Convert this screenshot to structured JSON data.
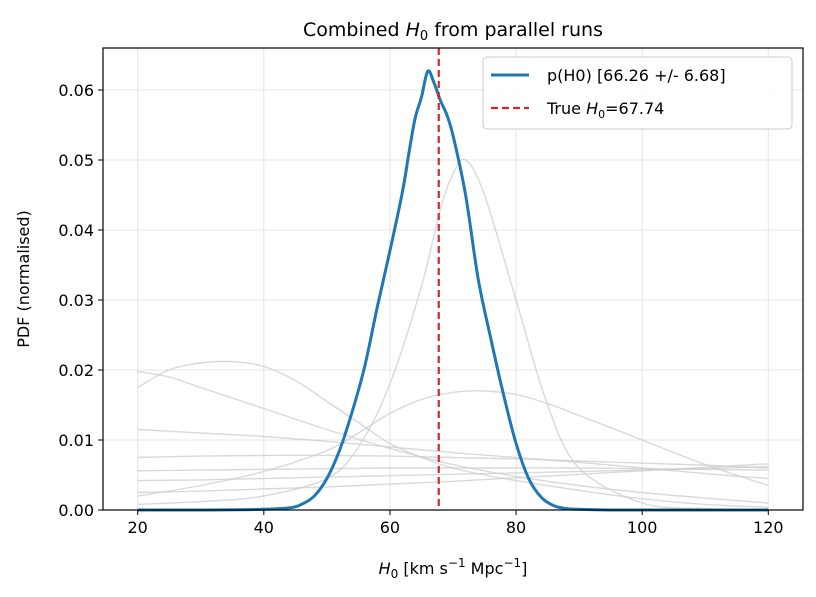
{
  "chart_data": {
    "type": "line",
    "title": "Combined H0 from parallel runs",
    "xlabel": "H0 [km s−1 Mpc−1]",
    "ylabel": "PDF (normalised)",
    "xlim": [
      14.5,
      125.5
    ],
    "ylim": [
      0,
      0.066
    ],
    "xticks": [
      20,
      40,
      60,
      80,
      100,
      120
    ],
    "yticks": [
      0.0,
      0.01,
      0.02,
      0.03,
      0.04,
      0.05,
      0.06
    ],
    "ytick_labels": [
      "0.00",
      "0.01",
      "0.02",
      "0.03",
      "0.04",
      "0.05",
      "0.06"
    ],
    "grid": true,
    "legend_position": "top-right",
    "colors": {
      "combined": "#1f77b4",
      "truth": "#d62728",
      "runs": "#cccccc"
    },
    "combined": {
      "name": "p(H0) [66.26 +/- 6.68]",
      "x": [
        20,
        30,
        40,
        44,
        46,
        48,
        50,
        52,
        54,
        56,
        58,
        60,
        62,
        63,
        64,
        65,
        66,
        67,
        68,
        69,
        70,
        72,
        74,
        76,
        78,
        80,
        82,
        84,
        86,
        88,
        90,
        95,
        100,
        110,
        120
      ],
      "y": [
        0,
        0,
        0.0001,
        0.0003,
        0.0008,
        0.002,
        0.0045,
        0.0085,
        0.014,
        0.0205,
        0.029,
        0.037,
        0.0455,
        0.051,
        0.056,
        0.059,
        0.0627,
        0.061,
        0.0585,
        0.0565,
        0.0535,
        0.045,
        0.033,
        0.0245,
        0.0165,
        0.0095,
        0.0045,
        0.0018,
        0.0006,
        0.0002,
        0.0001,
        0,
        0,
        0,
        0
      ]
    },
    "truth": {
      "name": "True H0=67.74",
      "x": 67.74
    },
    "runs": [
      {
        "x": [
          20,
          25,
          30,
          35,
          40,
          45,
          50,
          55,
          60,
          65,
          70,
          75,
          80,
          90,
          100,
          110,
          120
        ],
        "y": [
          0.0175,
          0.02,
          0.021,
          0.0212,
          0.0205,
          0.0185,
          0.0155,
          0.0125,
          0.0095,
          0.0075,
          0.006,
          0.005,
          0.0042,
          0.0028,
          0.0016,
          0.0008,
          0.0004
        ]
      },
      {
        "x": [
          20,
          25,
          30,
          40,
          50,
          60,
          70,
          80,
          90,
          100,
          110,
          120
        ],
        "y": [
          0.0198,
          0.019,
          0.0175,
          0.0145,
          0.0115,
          0.0088,
          0.0065,
          0.0048,
          0.0035,
          0.0025,
          0.0017,
          0.001
        ]
      },
      {
        "x": [
          20,
          30,
          40,
          50,
          60,
          70,
          80,
          90,
          100,
          110,
          120
        ],
        "y": [
          0.0115,
          0.011,
          0.0105,
          0.0098,
          0.009,
          0.0082,
          0.0075,
          0.0068,
          0.006,
          0.0052,
          0.0045
        ]
      },
      {
        "x": [
          20,
          30,
          40,
          50,
          60,
          70,
          80,
          90,
          100,
          110,
          120
        ],
        "y": [
          0.0075,
          0.0077,
          0.0078,
          0.0078,
          0.0077,
          0.0075,
          0.0073,
          0.007,
          0.0067,
          0.0064,
          0.006
        ]
      },
      {
        "x": [
          20,
          30,
          40,
          50,
          60,
          70,
          80,
          90,
          100,
          110,
          120
        ],
        "y": [
          0.0056,
          0.0057,
          0.0058,
          0.0059,
          0.006,
          0.006,
          0.006,
          0.006,
          0.0059,
          0.0058,
          0.0057
        ]
      },
      {
        "x": [
          20,
          30,
          40,
          50,
          60,
          70,
          80,
          90,
          100,
          110,
          120
        ],
        "y": [
          0.0042,
          0.0043,
          0.0045,
          0.0047,
          0.0049,
          0.0051,
          0.0053,
          0.0055,
          0.0057,
          0.0059,
          0.0062
        ]
      },
      {
        "x": [
          20,
          30,
          40,
          50,
          60,
          70,
          80,
          90,
          100,
          110,
          120
        ],
        "y": [
          0.0025,
          0.0027,
          0.003,
          0.0033,
          0.0037,
          0.0041,
          0.0046,
          0.0051,
          0.0056,
          0.0061,
          0.0066
        ]
      },
      {
        "x": [
          20,
          30,
          40,
          50,
          55,
          60,
          65,
          70,
          75,
          80,
          85,
          90,
          100,
          110,
          120
        ],
        "y": [
          0.002,
          0.0035,
          0.0055,
          0.0085,
          0.011,
          0.0138,
          0.0158,
          0.0168,
          0.017,
          0.0165,
          0.0152,
          0.0135,
          0.01,
          0.0065,
          0.0035
        ]
      },
      {
        "x": [
          20,
          30,
          40,
          50,
          55,
          60,
          65,
          68,
          70,
          72,
          75,
          80,
          85,
          90,
          100,
          110,
          120
        ],
        "y": [
          0.0008,
          0.0012,
          0.002,
          0.0045,
          0.009,
          0.018,
          0.032,
          0.043,
          0.048,
          0.05,
          0.045,
          0.03,
          0.015,
          0.006,
          0.001,
          0.0002,
          0
        ]
      }
    ]
  }
}
